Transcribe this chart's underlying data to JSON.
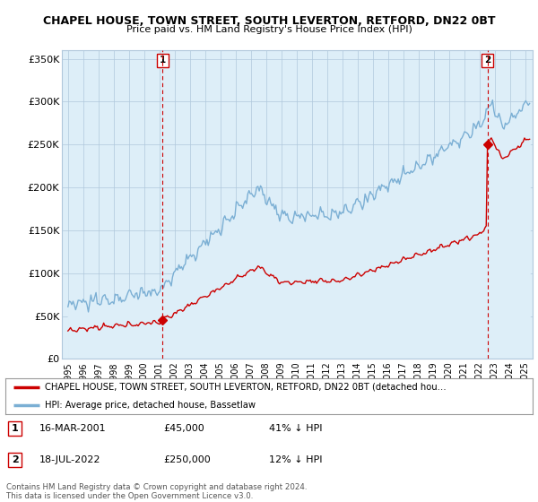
{
  "title": "CHAPEL HOUSE, TOWN STREET, SOUTH LEVERTON, RETFORD, DN22 0BT",
  "subtitle": "Price paid vs. HM Land Registry's House Price Index (HPI)",
  "ylim": [
    0,
    360000
  ],
  "yticks": [
    0,
    50000,
    100000,
    150000,
    200000,
    250000,
    300000,
    350000
  ],
  "ytick_labels": [
    "£0",
    "£50K",
    "£100K",
    "£150K",
    "£200K",
    "£250K",
    "£300K",
    "£350K"
  ],
  "sale1_date": 2001.21,
  "sale1_price": 45000,
  "sale2_date": 2022.55,
  "sale2_price": 250000,
  "hpi_color": "#7bafd4",
  "hpi_bg_color": "#ddeef8",
  "sale_color": "#cc0000",
  "dashed_color": "#cc0000",
  "legend_line1": "CHAPEL HOUSE, TOWN STREET, SOUTH LEVERTON, RETFORD, DN22 0BT (detached hou…",
  "legend_line2": "HPI: Average price, detached house, Bassetlaw",
  "table_rows": [
    {
      "label": "1",
      "date": "16-MAR-2001",
      "price": "£45,000",
      "hpi": "41% ↓ HPI"
    },
    {
      "label": "2",
      "date": "18-JUL-2022",
      "price": "£250,000",
      "hpi": "12% ↓ HPI"
    }
  ],
  "footnote": "Contains HM Land Registry data © Crown copyright and database right 2024.\nThis data is licensed under the Open Government Licence v3.0.",
  "bg_color": "#ffffff",
  "plot_bg_color": "#ddeef8",
  "grid_color": "#b0c8dc"
}
